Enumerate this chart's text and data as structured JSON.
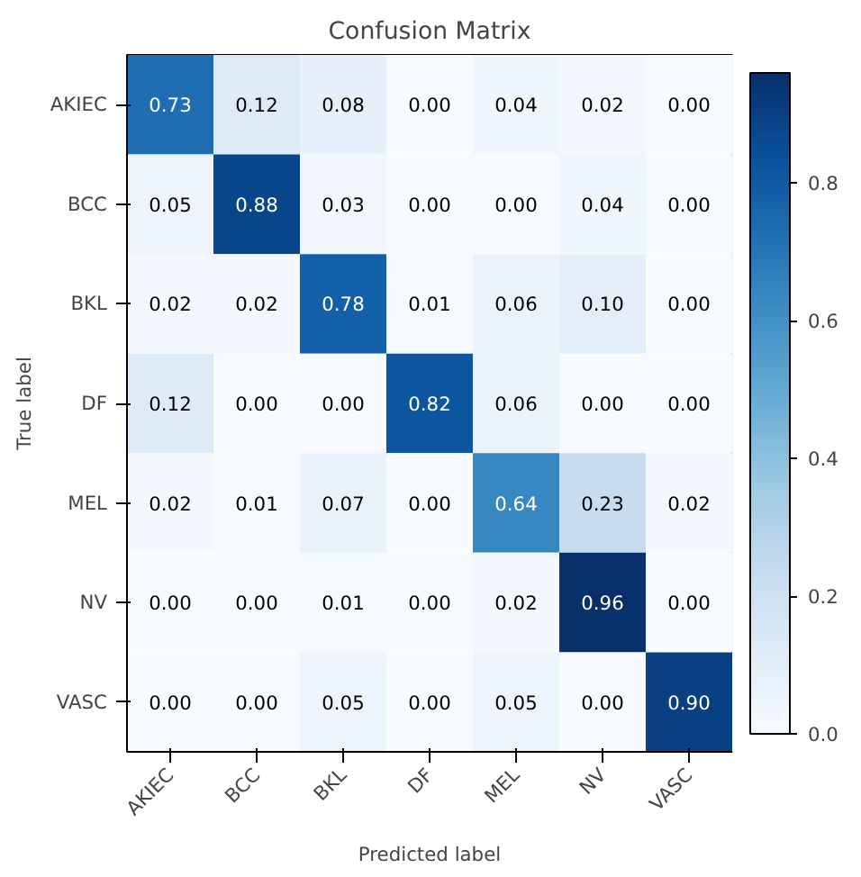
{
  "chart_data": {
    "type": "heatmap",
    "title": "Confusion Matrix",
    "xlabel": "Predicted label",
    "ylabel": "True label",
    "categories": [
      "AKIEC",
      "BCC",
      "BKL",
      "DF",
      "MEL",
      "NV",
      "VASC"
    ],
    "y_categories": [
      "AKIEC",
      "BCC",
      "BKL",
      "DF",
      "MEL",
      "NV",
      "VASC"
    ],
    "cells": [
      [
        0.73,
        0.12,
        0.08,
        0.0,
        0.04,
        0.02,
        0.0
      ],
      [
        0.05,
        0.88,
        0.03,
        0.0,
        0.0,
        0.04,
        0.0
      ],
      [
        0.02,
        0.02,
        0.78,
        0.01,
        0.06,
        0.1,
        0.0
      ],
      [
        0.12,
        0.0,
        0.0,
        0.82,
        0.06,
        0.0,
        0.0
      ],
      [
        0.02,
        0.01,
        0.07,
        0.0,
        0.64,
        0.23,
        0.02
      ],
      [
        0.0,
        0.0,
        0.01,
        0.0,
        0.02,
        0.96,
        0.0
      ],
      [
        0.0,
        0.0,
        0.05,
        0.0,
        0.05,
        0.0,
        0.9
      ]
    ],
    "cell_labels": [
      [
        "0.73",
        "0.12",
        "0.08",
        "0.00",
        "0.04",
        "0.02",
        "0.00"
      ],
      [
        "0.05",
        "0.88",
        "0.03",
        "0.00",
        "0.00",
        "0.04",
        "0.00"
      ],
      [
        "0.02",
        "0.02",
        "0.78",
        "0.01",
        "0.06",
        "0.10",
        "0.00"
      ],
      [
        "0.12",
        "0.00",
        "0.00",
        "0.82",
        "0.06",
        "0.00",
        "0.00"
      ],
      [
        "0.02",
        "0.01",
        "0.07",
        "0.00",
        "0.64",
        "0.23",
        "0.02"
      ],
      [
        "0.00",
        "0.00",
        "0.01",
        "0.00",
        "0.02",
        "0.96",
        "0.00"
      ],
      [
        "0.00",
        "0.00",
        "0.05",
        "0.00",
        "0.05",
        "0.00",
        "0.90"
      ]
    ],
    "clim": [
      0,
      0.96
    ],
    "cticks": [
      {
        "value": 0,
        "label": "0.0"
      },
      0.2,
      0.4,
      0.6,
      0.8
    ],
    "data_labels": true
  }
}
